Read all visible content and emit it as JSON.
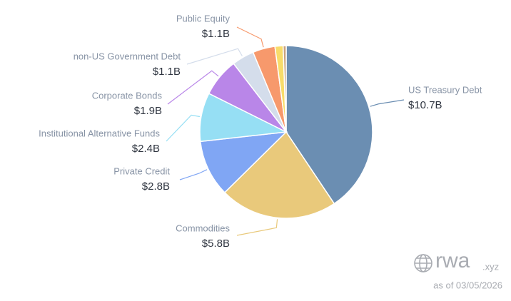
{
  "chart_data": {
    "type": "pie",
    "categories": [
      "US Treasury Debt",
      "Commodities",
      "Private Credit",
      "Institutional Alternative Funds",
      "Corporate Bonds",
      "non-US Government Debt",
      "Public Equity",
      null,
      null
    ],
    "values": [
      10.7,
      5.8,
      2.8,
      2.4,
      1.9,
      1.1,
      1.1,
      0.4,
      0.15
    ],
    "value_labels": [
      "$10.7B",
      "$5.8B",
      "$2.8B",
      "$2.4B",
      "$1.9B",
      "$1.1B",
      "$1.1B",
      null,
      null
    ],
    "colors": [
      "#6b8eb2",
      "#e9c97b",
      "#80a6f4",
      "#96dff4",
      "#b986e8",
      "#d4ddeb",
      "#f7996c",
      "#f8dc6a",
      "#c9a27c"
    ],
    "watermark": "rwa",
    "watermark_suffix": ".xyz",
    "note": "as of 03/05/2026"
  }
}
